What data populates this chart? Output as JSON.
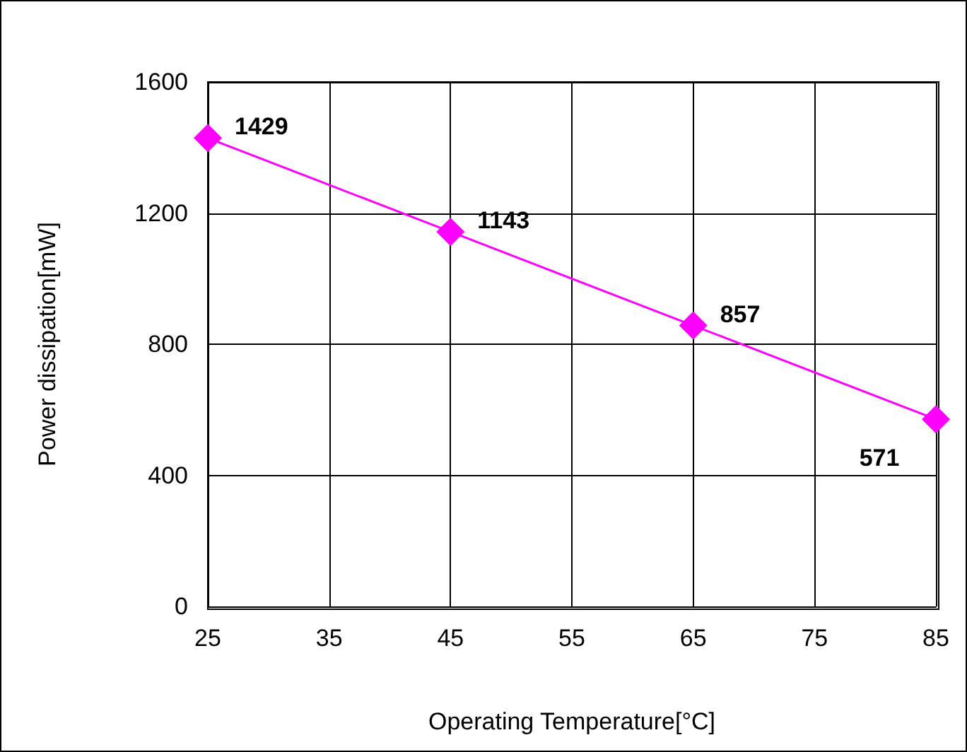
{
  "chart_data": {
    "type": "line",
    "xlabel": "Operating Temperature[°C]",
    "ylabel": "Power dissipation[mW]",
    "x": [
      25,
      45,
      65,
      85
    ],
    "series": [
      {
        "color": "#ff00ff",
        "values": [
          1429,
          1143,
          857,
          571
        ]
      }
    ],
    "xlim": [
      25,
      85
    ],
    "xticks": [
      25,
      35,
      45,
      55,
      65,
      75,
      85
    ],
    "ylim": [
      0,
      1600
    ],
    "yticks": [
      0,
      400,
      800,
      1200,
      1600
    ],
    "grid": true,
    "marker": "diamond",
    "line_style": "solid",
    "data_labels": true
  }
}
